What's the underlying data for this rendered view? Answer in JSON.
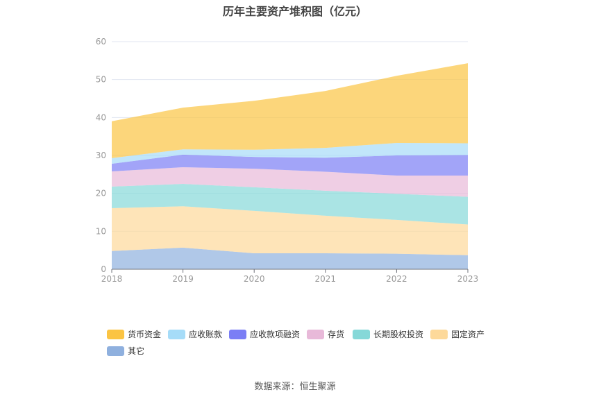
{
  "chart_data": {
    "type": "area",
    "stacked": true,
    "title": "历年主要资产堆积图（亿元）",
    "categories": [
      "2018",
      "2019",
      "2020",
      "2021",
      "2022",
      "2023"
    ],
    "ylim": [
      0,
      60
    ],
    "yticks": [
      0,
      10,
      20,
      30,
      40,
      50,
      60
    ],
    "grid": true,
    "legend_position": "bottom",
    "series": [
      {
        "name": "其它",
        "color": "#8fb0de",
        "values": [
          4.8,
          5.7,
          4.2,
          4.2,
          4.1,
          3.7
        ]
      },
      {
        "name": "固定资产",
        "color": "#fdd99a",
        "values": [
          11.3,
          10.9,
          11.2,
          9.9,
          8.9,
          8.1
        ]
      },
      {
        "name": "长期股权投资",
        "color": "#86d8d8",
        "values": [
          5.7,
          5.9,
          6.2,
          6.6,
          6.9,
          7.3
        ]
      },
      {
        "name": "存货",
        "color": "#e8b9d9",
        "values": [
          4.0,
          4.4,
          4.9,
          5.0,
          4.8,
          5.6
        ]
      },
      {
        "name": "应收款项融资",
        "color": "#7b7ef5",
        "values": [
          2.0,
          3.3,
          3.1,
          3.7,
          5.3,
          5.4
        ]
      },
      {
        "name": "应收账款",
        "color": "#a6dcf8",
        "values": [
          1.5,
          1.4,
          1.9,
          2.6,
          3.3,
          3.1
        ]
      },
      {
        "name": "货币资金",
        "color": "#fbc443",
        "values": [
          9.7,
          11.0,
          12.9,
          15.0,
          17.7,
          21.1
        ]
      }
    ]
  },
  "source": "数据来源：恒生聚源"
}
